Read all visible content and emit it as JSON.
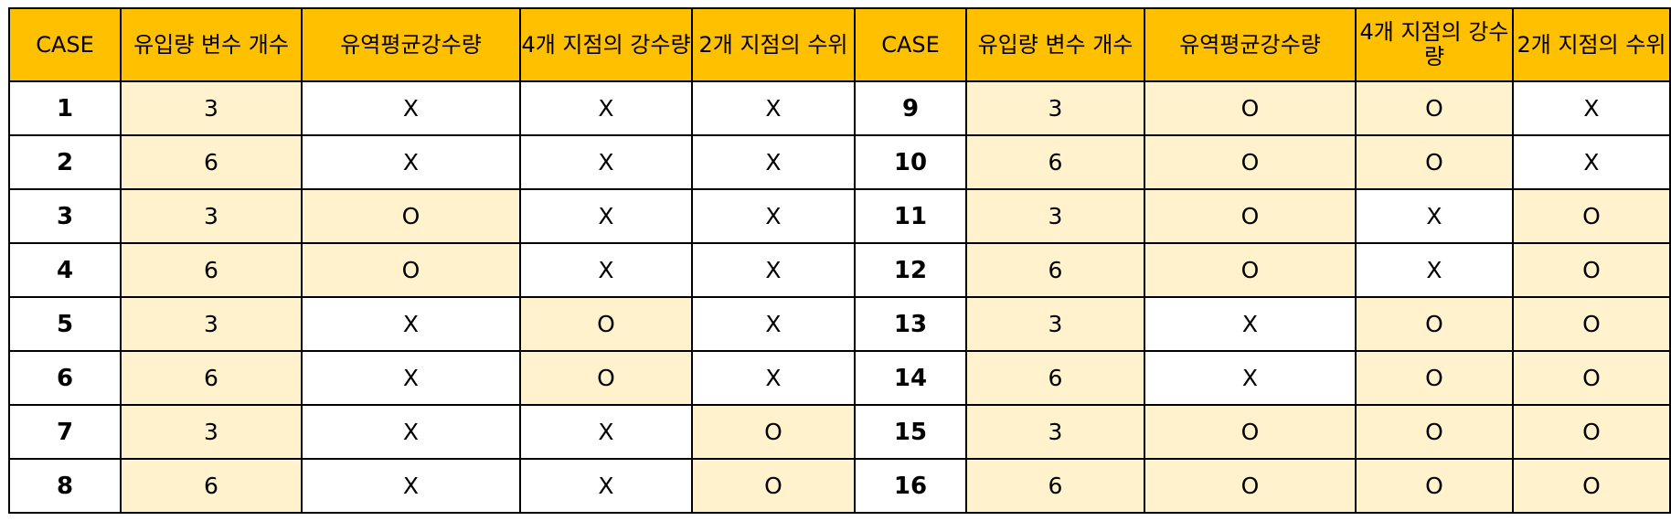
{
  "colors": {
    "header_background": "#ffc000",
    "highlight_cell": "#fff2cc",
    "plain_cell": "#ffffff",
    "border": "#000000"
  },
  "table": {
    "headers": [
      "CASE",
      "유입량 변수 개수",
      "유역평균강수량",
      "4개 지점의 강수량",
      "2개 지점의 수위",
      "CASE",
      "유입량 변수 개수",
      "유역평균강수량",
      "4개 지점의 강수량",
      "2개 지점의 수위"
    ],
    "rows": [
      {
        "left": {
          "case": "1",
          "count": "3",
          "basin_rain": "X",
          "four_point_rain": "X",
          "two_point_level": "X"
        },
        "right": {
          "case": "9",
          "count": "3",
          "basin_rain": "O",
          "four_point_rain": "O",
          "two_point_level": "X"
        }
      },
      {
        "left": {
          "case": "2",
          "count": "6",
          "basin_rain": "X",
          "four_point_rain": "X",
          "two_point_level": "X"
        },
        "right": {
          "case": "10",
          "count": "6",
          "basin_rain": "O",
          "four_point_rain": "O",
          "two_point_level": "X"
        }
      },
      {
        "left": {
          "case": "3",
          "count": "3",
          "basin_rain": "O",
          "four_point_rain": "X",
          "two_point_level": "X"
        },
        "right": {
          "case": "11",
          "count": "3",
          "basin_rain": "O",
          "four_point_rain": "X",
          "two_point_level": "O"
        }
      },
      {
        "left": {
          "case": "4",
          "count": "6",
          "basin_rain": "O",
          "four_point_rain": "X",
          "two_point_level": "X"
        },
        "right": {
          "case": "12",
          "count": "6",
          "basin_rain": "O",
          "four_point_rain": "X",
          "two_point_level": "O"
        }
      },
      {
        "left": {
          "case": "5",
          "count": "3",
          "basin_rain": "X",
          "four_point_rain": "O",
          "two_point_level": "X"
        },
        "right": {
          "case": "13",
          "count": "3",
          "basin_rain": "X",
          "four_point_rain": "O",
          "two_point_level": "O"
        }
      },
      {
        "left": {
          "case": "6",
          "count": "6",
          "basin_rain": "X",
          "four_point_rain": "O",
          "two_point_level": "X"
        },
        "right": {
          "case": "14",
          "count": "6",
          "basin_rain": "X",
          "four_point_rain": "O",
          "two_point_level": "O"
        }
      },
      {
        "left": {
          "case": "7",
          "count": "3",
          "basin_rain": "X",
          "four_point_rain": "X",
          "two_point_level": "O"
        },
        "right": {
          "case": "15",
          "count": "3",
          "basin_rain": "O",
          "four_point_rain": "O",
          "two_point_level": "O"
        }
      },
      {
        "left": {
          "case": "8",
          "count": "6",
          "basin_rain": "X",
          "four_point_rain": "X",
          "two_point_level": "O"
        },
        "right": {
          "case": "16",
          "count": "6",
          "basin_rain": "O",
          "four_point_rain": "O",
          "two_point_level": "O"
        }
      }
    ]
  }
}
